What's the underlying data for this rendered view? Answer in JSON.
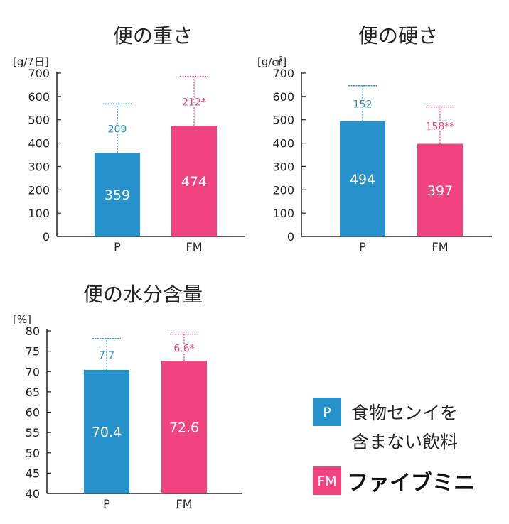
{
  "colors": {
    "P": "#2791cb",
    "FM": "#f1437f",
    "axis": "#222222"
  },
  "chart_data": [
    {
      "type": "bar",
      "title": "便の重さ",
      "unit_label": "[g/7日]",
      "categories": [
        "P",
        "FM"
      ],
      "values": [
        359,
        474
      ],
      "value_labels": [
        "359",
        "474"
      ],
      "error_values": [
        209,
        212
      ],
      "error_labels": [
        "209",
        "212*"
      ],
      "ylim": [
        0,
        700
      ],
      "yticks": [
        0,
        100,
        200,
        300,
        400,
        500,
        600,
        700
      ],
      "grid": false
    },
    {
      "type": "bar",
      "title": "便の硬さ",
      "unit_label": "[g/㎠]",
      "categories": [
        "P",
        "FM"
      ],
      "values": [
        494,
        397
      ],
      "value_labels": [
        "494",
        "397"
      ],
      "error_values": [
        152,
        158
      ],
      "error_labels": [
        "152",
        "158**"
      ],
      "ylim": [
        0,
        700
      ],
      "yticks": [
        0,
        100,
        200,
        300,
        400,
        500,
        600,
        700
      ],
      "grid": false
    },
    {
      "type": "bar",
      "title": "便の水分含量",
      "unit_label": "[%]",
      "categories": [
        "P",
        "FM"
      ],
      "values": [
        70.4,
        72.6
      ],
      "value_labels": [
        "70.4",
        "72.6"
      ],
      "error_values": [
        7.7,
        6.6
      ],
      "error_labels": [
        "7.7",
        "6.6*"
      ],
      "ylim": [
        40,
        80
      ],
      "yticks": [
        40,
        45,
        50,
        55,
        60,
        65,
        70,
        75,
        80
      ],
      "grid": false
    }
  ],
  "legend": {
    "items": [
      {
        "key": "P",
        "swatch_label": "P",
        "line1": "食物センイを",
        "line2": "含まない飲料"
      },
      {
        "key": "FM",
        "swatch_label": "FM",
        "brand": "ファイブミニ"
      }
    ]
  }
}
